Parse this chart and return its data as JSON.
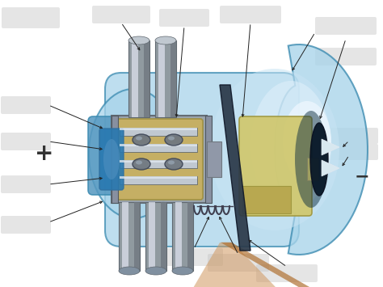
{
  "bg_color": "#ffffff",
  "envelope_color": "#a8d4ea",
  "envelope_edge": "#3a8ab0",
  "cathode_blue": "#7ab8d8",
  "cathode_silver": "#b0b8c0",
  "cathode_dark_silver": "#808890",
  "cathode_gold": "#c8b060",
  "cathode_gold_edge": "#a09040",
  "pin_mid": "#b8bec6",
  "pin_light": "#d8dce4",
  "pin_dark": "#888c94",
  "anode_gold": "#d0c870",
  "anode_gold_edge": "#a09840",
  "anode_dark": "#0a1820",
  "inner_glow1": "#c8e4f4",
  "inner_glow2": "#e4f2fc",
  "beam_color": "#d09860",
  "beam_stripe": "#b07030",
  "filament_color": "#404050",
  "plate_color": "#2a3848",
  "plate_edge": "#101828",
  "arrow_color": "#222222",
  "label_gray": "#c0c0c0",
  "plus_color": "#333333",
  "minus_color": "#333333"
}
